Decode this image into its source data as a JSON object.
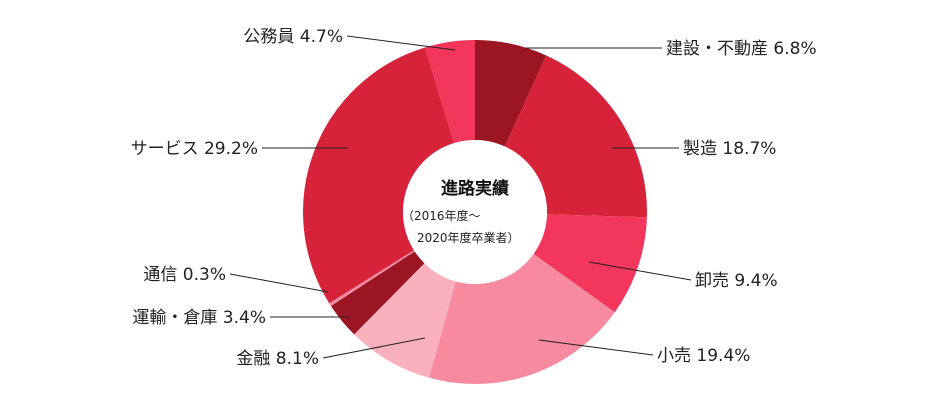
{
  "chart_data": {
    "type": "pie",
    "title": "進路実績",
    "subtitle": [
      "（2016年度～",
      "2020年度卒業者）"
    ],
    "unit": "%",
    "slices": [
      {
        "label": "建設・不動産",
        "value": 6.8,
        "display": "建設・不動産 6.8%",
        "color": "#9b1622"
      },
      {
        "label": "製造",
        "value": 18.7,
        "display": "製造 18.7%",
        "color": "#d6233a"
      },
      {
        "label": "卸売",
        "value": 9.4,
        "display": "卸売 9.4%",
        "color": "#f2365c"
      },
      {
        "label": "小売",
        "value": 19.4,
        "display": "小売 19.4%",
        "color": "#f78a9e"
      },
      {
        "label": "金融",
        "value": 8.1,
        "display": "金融 8.1%",
        "color": "#fbb1bd"
      },
      {
        "label": "運輸・倉庫",
        "value": 3.4,
        "display": "運輸・倉庫 3.4%",
        "color": "#9b1622"
      },
      {
        "label": "通信",
        "value": 0.3,
        "display": "通信 0.3%",
        "color": "#f78a9e"
      },
      {
        "label": "サービス",
        "value": 29.2,
        "display": "サービス 29.2%",
        "color": "#d6233a"
      },
      {
        "label": "公務員",
        "value": 4.7,
        "display": "公務員 4.7%",
        "color": "#f2365c"
      }
    ]
  }
}
